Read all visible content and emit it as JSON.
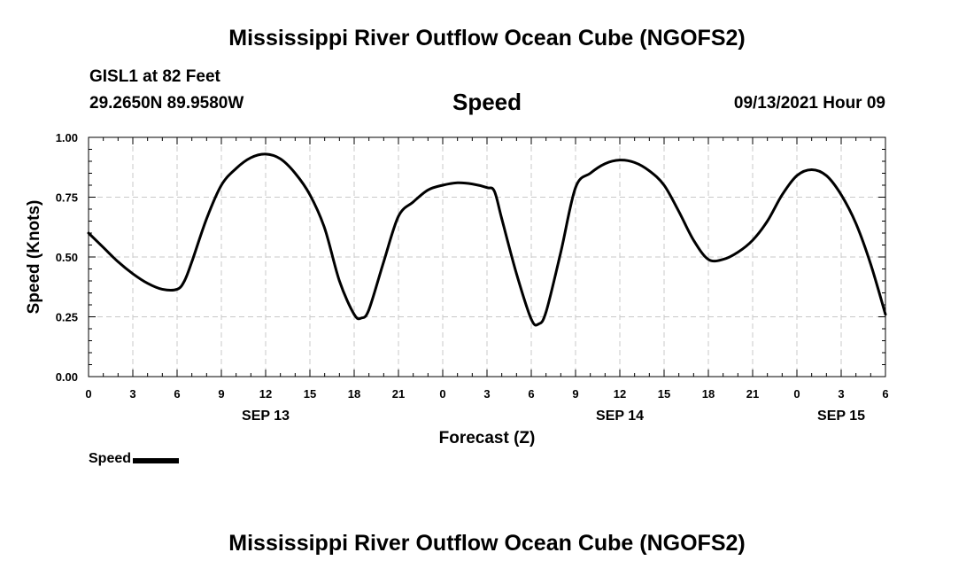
{
  "header": {
    "title": "Mississippi River Outflow Ocean Cube (NGOFS2)",
    "station": "GISL1 at 82 Feet",
    "coordinates": "29.2650N  89.9580W",
    "variable": "Speed",
    "datetime": "09/13/2021 Hour 09"
  },
  "footer": {
    "title": "Mississippi River Outflow Ocean Cube (NGOFS2)"
  },
  "legend": {
    "label": "Speed",
    "color": "#000000"
  },
  "chart_data": {
    "type": "line",
    "title": "Speed",
    "xlabel": "Forecast (Z)",
    "ylabel": "Speed (Knots)",
    "xlim": [
      0,
      54
    ],
    "ylim": [
      0,
      1.0
    ],
    "grid": true,
    "x_ticks": [
      {
        "x": 0,
        "label": "0"
      },
      {
        "x": 3,
        "label": "3"
      },
      {
        "x": 6,
        "label": "6"
      },
      {
        "x": 9,
        "label": "9"
      },
      {
        "x": 12,
        "label": "12"
      },
      {
        "x": 15,
        "label": "15"
      },
      {
        "x": 18,
        "label": "18"
      },
      {
        "x": 21,
        "label": "21"
      },
      {
        "x": 24,
        "label": "0"
      },
      {
        "x": 27,
        "label": "3"
      },
      {
        "x": 30,
        "label": "6"
      },
      {
        "x": 33,
        "label": "9"
      },
      {
        "x": 36,
        "label": "12"
      },
      {
        "x": 39,
        "label": "15"
      },
      {
        "x": 42,
        "label": "18"
      },
      {
        "x": 45,
        "label": "21"
      },
      {
        "x": 48,
        "label": "0"
      },
      {
        "x": 51,
        "label": "3"
      },
      {
        "x": 54,
        "label": "6"
      }
    ],
    "day_labels": [
      {
        "x": 12,
        "label": "SEP 13"
      },
      {
        "x": 36,
        "label": "SEP 14"
      },
      {
        "x": 51,
        "label": "SEP 15"
      }
    ],
    "y_ticks": [
      {
        "y": 0.0,
        "label": "0.00"
      },
      {
        "y": 0.25,
        "label": "0.25"
      },
      {
        "y": 0.5,
        "label": "0.50"
      },
      {
        "y": 0.75,
        "label": "0.75"
      },
      {
        "y": 1.0,
        "label": "1.00"
      }
    ],
    "series": [
      {
        "name": "Speed",
        "color": "#000000",
        "x": [
          0,
          1,
          2,
          3,
          4,
          5,
          6,
          6.5,
          7,
          8,
          9,
          10,
          11,
          12,
          13,
          14,
          15,
          16,
          17,
          18,
          18.5,
          19,
          20,
          21,
          22,
          23,
          24,
          25,
          26,
          27,
          27.5,
          28,
          29,
          30,
          30.5,
          31,
          32,
          33,
          34,
          35,
          36,
          37,
          38,
          39,
          40,
          41,
          42,
          43,
          44,
          45,
          46,
          47,
          48,
          49,
          50,
          51,
          52,
          53,
          54
        ],
        "y": [
          0.6,
          0.54,
          0.48,
          0.43,
          0.39,
          0.365,
          0.365,
          0.4,
          0.48,
          0.66,
          0.8,
          0.87,
          0.915,
          0.93,
          0.91,
          0.85,
          0.76,
          0.62,
          0.4,
          0.26,
          0.245,
          0.28,
          0.48,
          0.67,
          0.73,
          0.78,
          0.8,
          0.81,
          0.805,
          0.79,
          0.775,
          0.66,
          0.43,
          0.24,
          0.22,
          0.27,
          0.52,
          0.79,
          0.85,
          0.89,
          0.905,
          0.895,
          0.86,
          0.8,
          0.69,
          0.57,
          0.49,
          0.49,
          0.52,
          0.57,
          0.65,
          0.76,
          0.84,
          0.865,
          0.84,
          0.76,
          0.64,
          0.47,
          0.26
        ]
      }
    ]
  }
}
